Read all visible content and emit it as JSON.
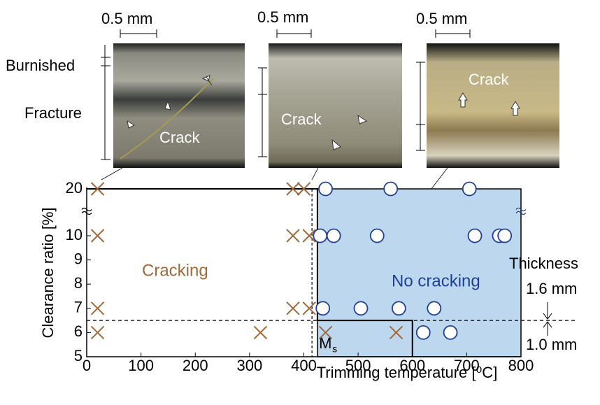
{
  "chart_data": {
    "type": "scatter",
    "xlabel": "Trimming temperature [⁰C]",
    "ylabel": "Clearance ratio [%]",
    "xlim": [
      0,
      800
    ],
    "xticks": [
      0,
      100,
      200,
      300,
      400,
      500,
      600,
      700,
      800
    ],
    "ylim": [
      5,
      20
    ],
    "yticks": [
      5,
      6,
      7,
      8,
      9,
      10,
      20
    ],
    "axis_break": true,
    "series": [
      {
        "name": "Cracking",
        "marker": "x",
        "color": "#a0693a",
        "x": [
          20,
          20,
          20,
          20,
          320,
          380,
          400,
          380,
          410,
          380,
          410,
          440,
          570
        ],
        "values": [
          20,
          10,
          7,
          6,
          6,
          20,
          20,
          10,
          10,
          7,
          7,
          6,
          6
        ]
      },
      {
        "name": "No cracking",
        "marker": "o",
        "color": "#1f3f9a",
        "x": [
          440,
          560,
          705,
          430,
          455,
          535,
          715,
          760,
          770,
          435,
          505,
          575,
          640,
          620,
          670
        ],
        "values": [
          20,
          20,
          20,
          10,
          10,
          10,
          10,
          10,
          10,
          7,
          7,
          7,
          7,
          6,
          6
        ]
      }
    ],
    "no_cracking_region": {
      "xlim": [
        425,
        800
      ],
      "ylim": [
        5,
        20
      ],
      "color": "#bdd7ee"
    },
    "ms_line": {
      "label": "M",
      "subscript": "s",
      "x": 415
    },
    "thickness_line": {
      "label": "Thickness",
      "y": 6.5,
      "upper": "1.6 mm",
      "lower": "1.0 mm"
    },
    "micrographs": [
      {
        "scale": "0.5 mm",
        "labels": [
          "Burnished",
          "Fracture",
          "Crack"
        ]
      },
      {
        "scale": "0.5 mm",
        "labels": [
          "Crack"
        ]
      },
      {
        "scale": "0.5 mm",
        "labels": [
          "Crack"
        ]
      }
    ]
  }
}
